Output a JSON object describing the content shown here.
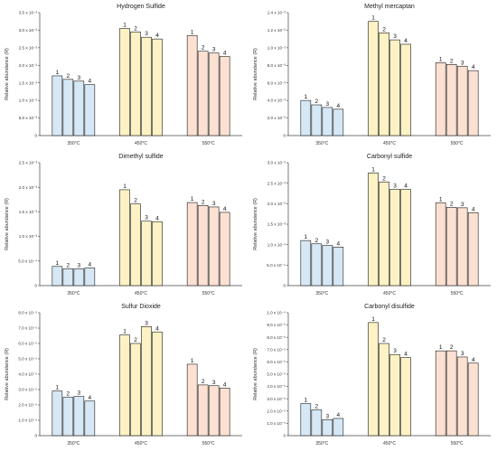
{
  "colors": {
    "c350": "#d6e8f5",
    "c450": "#fdf2c4",
    "c550": "#fce1d2",
    "edge": "#1a1a1a"
  },
  "chart_data": [
    {
      "type": "bar",
      "title": "Hydrogen Sulfide",
      "ylabel": "Relative abundance (R)",
      "groups": [
        "350°C",
        "450°C",
        "550°C"
      ],
      "bar_labels": [
        "1",
        "2",
        "3",
        "4"
      ],
      "values": [
        [
          0.017,
          0.016,
          0.0155,
          0.0145
        ],
        [
          0.0305,
          0.0295,
          0.028,
          0.0275
        ],
        [
          0.0285,
          0.024,
          0.0235,
          0.0225
        ]
      ],
      "ylim": [
        0,
        0.035
      ],
      "yticks": [
        0,
        0.005,
        0.01,
        0.015,
        0.02,
        0.025,
        0.03,
        0.035
      ],
      "ytick_labels": [
        "0",
        "5.0 x 10⁻³",
        "1.0 x 10⁻²",
        "1.5 x 10⁻²",
        "2.0 x 10⁻²",
        "2.5 x 10⁻²",
        "3.0 x 10⁻²",
        "3.5 x 10⁻²"
      ]
    },
    {
      "type": "bar",
      "title": "Methyl mercaptan",
      "ylabel": "Relative abundance (R)",
      "groups": [
        "350°C",
        "450°C",
        "550°C"
      ],
      "bar_labels": [
        "1",
        "2",
        "3",
        "4"
      ],
      "values": [
        [
          0.004,
          0.0035,
          0.0032,
          0.003
        ],
        [
          0.013,
          0.0117,
          0.0109,
          0.0104
        ],
        [
          0.0083,
          0.0081,
          0.0079,
          0.0074
        ]
      ],
      "ylim": [
        0,
        0.014
      ],
      "yticks": [
        0,
        0.002,
        0.004,
        0.006,
        0.008,
        0.01,
        0.012,
        0.014
      ],
      "ytick_labels": [
        "0",
        "2.0 x 10⁻³",
        "4.0 x 10⁻³",
        "6.0 x 10⁻³",
        "8.0 x 10⁻³",
        "1.0 x 10⁻²",
        "1.2 x 10⁻²",
        "1.4 x 10⁻²"
      ]
    },
    {
      "type": "bar",
      "title": "Dimethyl sulfide",
      "ylabel": "Relative abundance (R)",
      "groups": [
        "350°C",
        "450°C",
        "550°C"
      ],
      "bar_labels": [
        "1",
        "2",
        "3",
        "4"
      ],
      "values": [
        [
          0.00039,
          0.00034,
          0.00034,
          0.00036
        ],
        [
          0.00195,
          0.00166,
          0.00131,
          0.0013
        ],
        [
          0.00169,
          0.00163,
          0.0016,
          0.00149
        ]
      ],
      "ylim": [
        0,
        0.0025
      ],
      "yticks": [
        0,
        0.0005,
        0.001,
        0.0015,
        0.002,
        0.0025
      ],
      "ytick_labels": [
        "0",
        "5.0 x 10⁻⁴",
        "1.0 x 10⁻³",
        "1.5 x 10⁻³",
        "2.0 x 10⁻³",
        "2.5 x 10⁻³"
      ]
    },
    {
      "type": "bar",
      "title": "Carbonyl sulfide",
      "ylabel": "Relative abundance (R)",
      "groups": [
        "350°C",
        "450°C",
        "550°C"
      ],
      "bar_labels": [
        "1",
        "2",
        "3",
        "4"
      ],
      "values": [
        [
          0.0011,
          0.00102,
          0.00098,
          0.00094
        ],
        [
          0.00275,
          0.00253,
          0.00235,
          0.00235
        ],
        [
          0.00202,
          0.00191,
          0.0019,
          0.00178
        ]
      ],
      "ylim": [
        0,
        0.003
      ],
      "yticks": [
        0,
        0.0005,
        0.001,
        0.0015,
        0.002,
        0.0025,
        0.003
      ],
      "ytick_labels": [
        "0",
        "5.0 x 10⁻⁴",
        "1.0 x 10⁻³",
        "1.5 x 10⁻³",
        "2.0 x 10⁻³",
        "2.5 x 10⁻³",
        "3.0 x 10⁻³"
      ]
    },
    {
      "type": "bar",
      "title": "Sulfur Dioxide",
      "ylabel": "Relative abundance (R)",
      "groups": [
        "350°C",
        "450°C",
        "550°C"
      ],
      "bar_labels": [
        "1",
        "2",
        "3",
        "4"
      ],
      "values": [
        [
          2.9e-05,
          2.5e-05,
          2.55e-05,
          2.25e-05
        ],
        [
          6.55e-05,
          6e-05,
          7.1e-05,
          6.75e-05
        ],
        [
          4.65e-05,
          3.3e-05,
          3.25e-05,
          3.1e-05
        ]
      ],
      "ylim": [
        0,
        8e-05
      ],
      "yticks": [
        0,
        1e-05,
        2e-05,
        3e-05,
        4e-05,
        5e-05,
        6e-05,
        7e-05,
        8e-05
      ],
      "ytick_labels": [
        "0",
        "1.0 x 10⁻⁵",
        "2.0 x 10⁻⁵",
        "3.0 x 10⁻⁵",
        "4.0 x 10⁻⁵",
        "5.0 x 10⁻⁵",
        "6.0 x 10⁻⁵",
        "7.0 x 10⁻⁵",
        "8.0 x 10⁻⁵"
      ]
    },
    {
      "type": "bar",
      "title": "Carbonyl disulfide",
      "ylabel": "Relative abundance (R)",
      "groups": [
        "350°C",
        "450°C",
        "550°C"
      ],
      "bar_labels": [
        "1",
        "2",
        "3",
        "4"
      ],
      "values": [
        [
          2.6e-05,
          2.1e-05,
          1.3e-05,
          1.4e-05
        ],
        [
          9.2e-05,
          7.5e-05,
          6.6e-05,
          6.35e-05
        ],
        [
          6.9e-05,
          6.9e-05,
          6.4e-05,
          5.9e-05
        ]
      ],
      "ylim": [
        0,
        0.0001
      ],
      "yticks": [
        0,
        1e-05,
        2e-05,
        3e-05,
        4e-05,
        5e-05,
        6e-05,
        7e-05,
        8e-05,
        9e-05,
        0.0001
      ],
      "ytick_labels": [
        "0",
        "1.0 x 10⁻⁵",
        "2.0 x 10⁻⁵",
        "3.0 x 10⁻⁵",
        "4.0 x 10⁻⁵",
        "5.0 x 10⁻⁵",
        "6.0 x 10⁻⁵",
        "7.0 x 10⁻⁵",
        "8.0 x 10⁻⁵",
        "9.0 x 10⁻⁵",
        "1.0 x 10⁻⁴"
      ]
    }
  ]
}
